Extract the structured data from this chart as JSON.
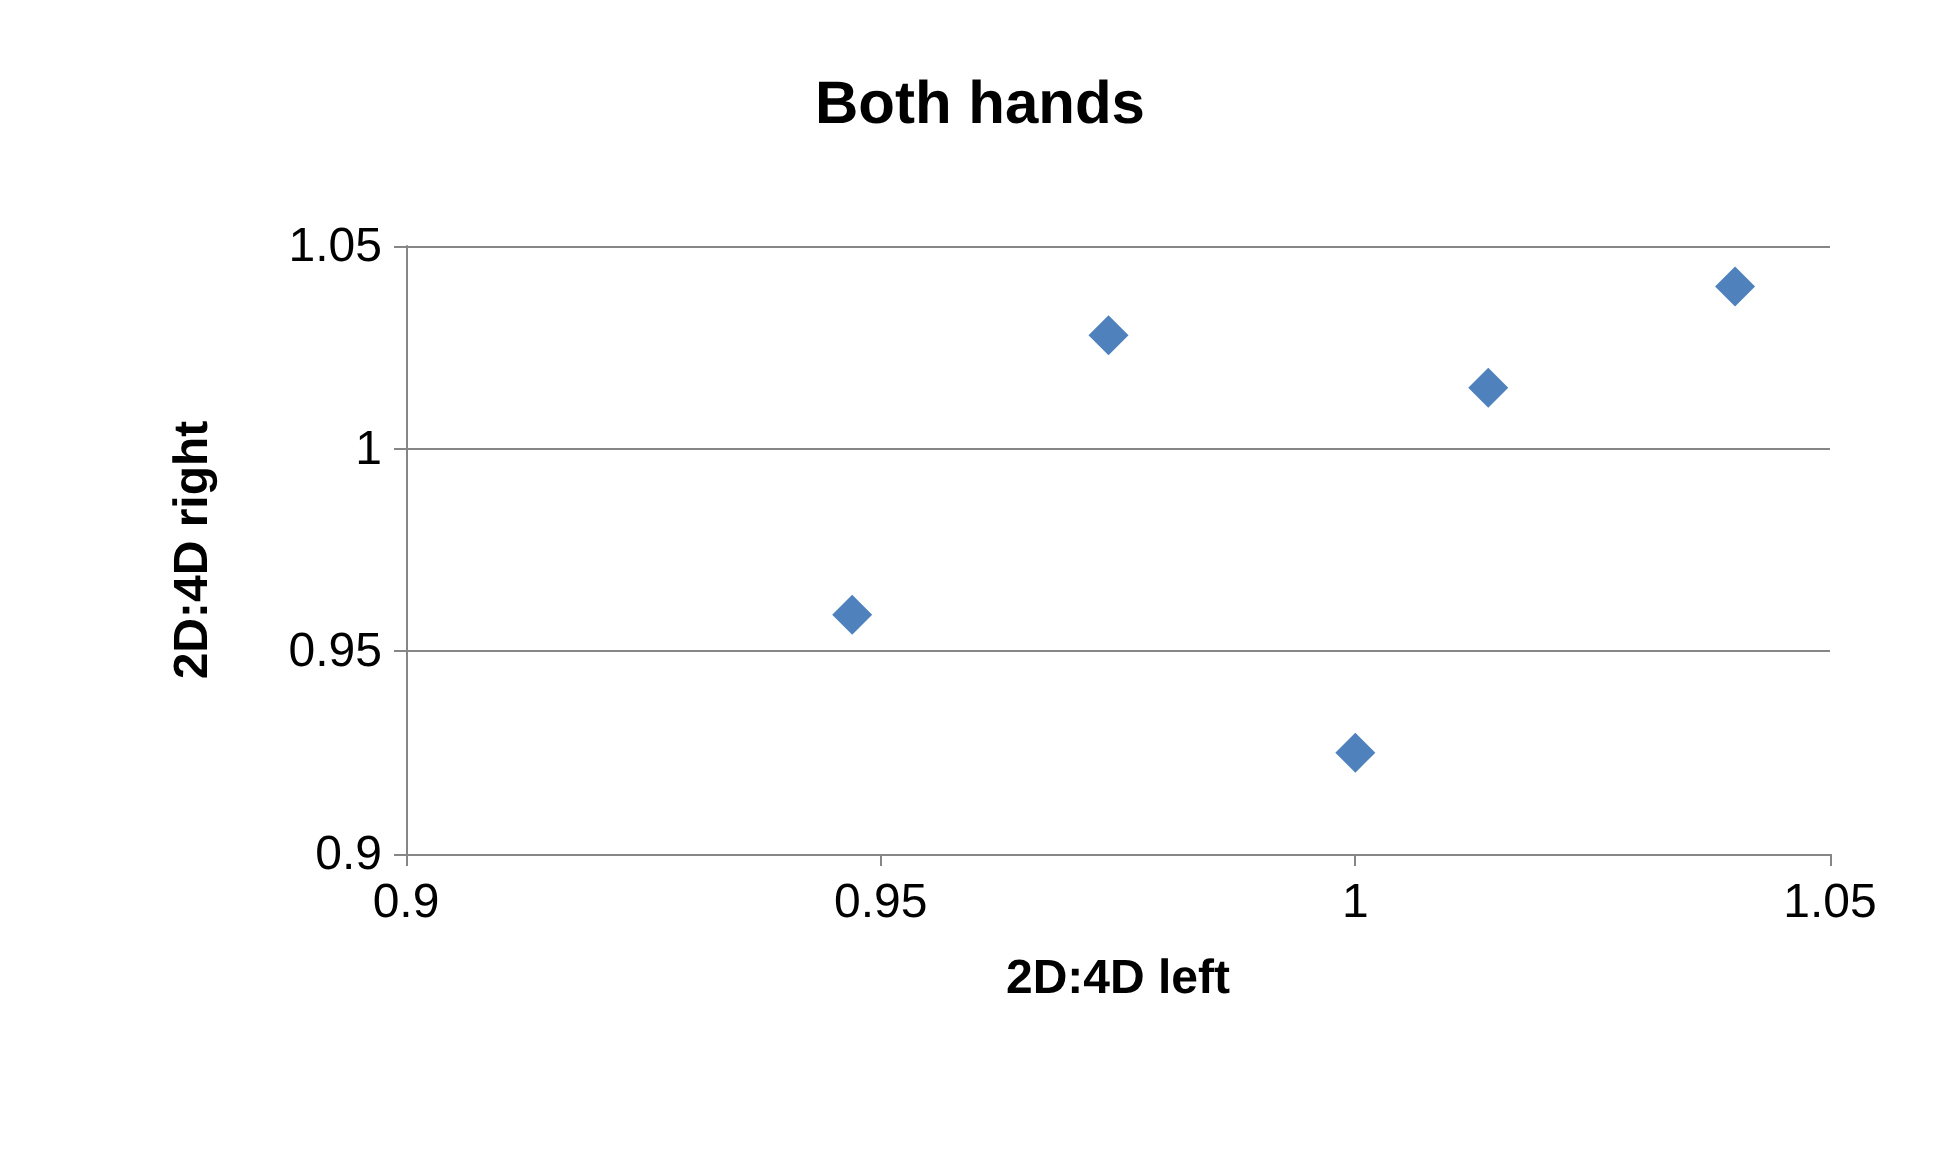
{
  "chart_data": {
    "type": "scatter",
    "title": "Both hands",
    "xlabel": "2D:4D left",
    "ylabel": "2D:4D right",
    "x": [
      0.947,
      0.974,
      1.0,
      1.014,
      1.04
    ],
    "series": [
      {
        "color": "#4f81bd",
        "values": [
          0.959,
          1.028,
          0.925,
          1.015,
          1.04
        ]
      }
    ],
    "xlim": [
      0.9,
      1.05
    ],
    "xticks": [
      0.9,
      0.95,
      1,
      1.05
    ],
    "ylim": [
      0.9,
      1.05
    ],
    "yticks": [
      0.9,
      0.95,
      1,
      1.05
    ],
    "grid": "y",
    "marker": "diamond"
  }
}
